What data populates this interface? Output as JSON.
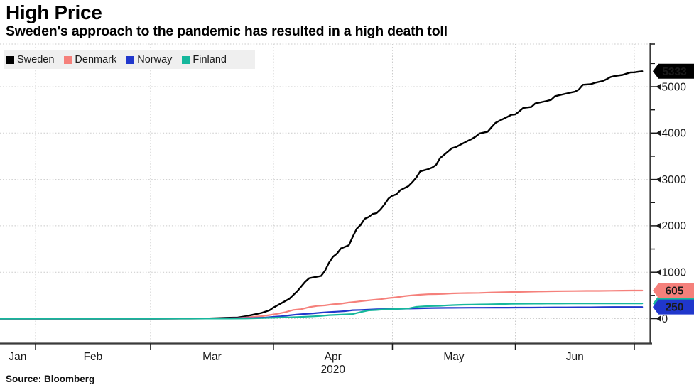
{
  "chart_data": {
    "type": "line",
    "title": "High Price",
    "subtitle": "Sweden's approach to the pandemic has resulted in a high death toll",
    "source": "Source: Bloomberg",
    "year_label": "2020",
    "x_axis": {
      "start_day": 22,
      "end_day": 184,
      "month_ticks": [
        31,
        60,
        91,
        121,
        152,
        182
      ],
      "month_labels": [
        {
          "label": "Jan",
          "day": 26.5
        },
        {
          "label": "Feb",
          "day": 45.5
        },
        {
          "label": "Mar",
          "day": 75.5
        },
        {
          "label": "Apr",
          "day": 106
        },
        {
          "label": "May",
          "day": 136.5
        },
        {
          "label": "Jun",
          "day": 167
        }
      ],
      "year_day": 106
    },
    "y_axis": {
      "major_ticks": [
        0,
        1000,
        2000,
        3000,
        4000,
        5000
      ],
      "minor_step": 500,
      "minor_max": 5500,
      "grid": true,
      "side": "right"
    },
    "legend_position": "top-left",
    "series": [
      {
        "id": "sweden",
        "name": "Sweden",
        "color": "#000000",
        "width": 2.4,
        "badge": {
          "label": "5333",
          "value": 5333,
          "text_color": "#ffffff",
          "z": 1
        },
        "points": [
          [
            22,
            0
          ],
          [
            50,
            0
          ],
          [
            60,
            0
          ],
          [
            70,
            1
          ],
          [
            74,
            3
          ],
          [
            77,
            10
          ],
          [
            80,
            20
          ],
          [
            82,
            25
          ],
          [
            84,
            50
          ],
          [
            86,
            87
          ],
          [
            88,
            122
          ],
          [
            90,
            180
          ],
          [
            91,
            239
          ],
          [
            93,
            333
          ],
          [
            95,
            428
          ],
          [
            97,
            591
          ],
          [
            99,
            793
          ],
          [
            100,
            870
          ],
          [
            101,
            887
          ],
          [
            103,
            919
          ],
          [
            104,
            1033
          ],
          [
            105,
            1203
          ],
          [
            106,
            1333
          ],
          [
            107,
            1400
          ],
          [
            108,
            1511
          ],
          [
            110,
            1580
          ],
          [
            111,
            1765
          ],
          [
            112,
            1937
          ],
          [
            113,
            2021
          ],
          [
            114,
            2152
          ],
          [
            115,
            2192
          ],
          [
            116,
            2255
          ],
          [
            117,
            2274
          ],
          [
            118,
            2355
          ],
          [
            119,
            2462
          ],
          [
            120,
            2586
          ],
          [
            121,
            2653
          ],
          [
            122,
            2679
          ],
          [
            123,
            2769
          ],
          [
            125,
            2854
          ],
          [
            126,
            2941
          ],
          [
            127,
            3040
          ],
          [
            128,
            3175
          ],
          [
            130,
            3220
          ],
          [
            131,
            3256
          ],
          [
            132,
            3313
          ],
          [
            133,
            3460
          ],
          [
            134,
            3529
          ],
          [
            136,
            3674
          ],
          [
            137,
            3698
          ],
          [
            138,
            3743
          ],
          [
            140,
            3831
          ],
          [
            141,
            3871
          ],
          [
            142,
            3925
          ],
          [
            143,
            3992
          ],
          [
            145,
            4029
          ],
          [
            146,
            4125
          ],
          [
            147,
            4220
          ],
          [
            148,
            4266
          ],
          [
            150,
            4350
          ],
          [
            151,
            4395
          ],
          [
            152,
            4403
          ],
          [
            153,
            4468
          ],
          [
            154,
            4542
          ],
          [
            156,
            4562
          ],
          [
            157,
            4639
          ],
          [
            158,
            4656
          ],
          [
            160,
            4694
          ],
          [
            161,
            4717
          ],
          [
            162,
            4795
          ],
          [
            163,
            4814
          ],
          [
            165,
            4854
          ],
          [
            166,
            4874
          ],
          [
            167,
            4891
          ],
          [
            168,
            4939
          ],
          [
            169,
            5041
          ],
          [
            171,
            5053
          ],
          [
            172,
            5082
          ],
          [
            174,
            5122
          ],
          [
            175,
            5161
          ],
          [
            176,
            5209
          ],
          [
            177,
            5230
          ],
          [
            179,
            5253
          ],
          [
            180,
            5280
          ],
          [
            181,
            5307
          ],
          [
            182,
            5310
          ],
          [
            183,
            5321
          ],
          [
            184,
            5333
          ]
        ]
      },
      {
        "id": "denmark",
        "name": "Denmark",
        "color": "#f5807b",
        "width": 2.2,
        "badge": {
          "label": "605",
          "value": 605,
          "text_color": "#6b1d16",
          "z": 2
        },
        "points": [
          [
            22,
            0
          ],
          [
            60,
            0
          ],
          [
            73,
            1
          ],
          [
            76,
            4
          ],
          [
            79,
            6
          ],
          [
            82,
            13
          ],
          [
            84,
            24
          ],
          [
            86,
            41
          ],
          [
            88,
            52
          ],
          [
            90,
            77
          ],
          [
            92,
            104
          ],
          [
            94,
            139
          ],
          [
            96,
            187
          ],
          [
            98,
            203
          ],
          [
            100,
            247
          ],
          [
            102,
            273
          ],
          [
            104,
            285
          ],
          [
            106,
            309
          ],
          [
            108,
            321
          ],
          [
            110,
            346
          ],
          [
            112,
            364
          ],
          [
            114,
            384
          ],
          [
            116,
            403
          ],
          [
            118,
            418
          ],
          [
            120,
            443
          ],
          [
            122,
            460
          ],
          [
            124,
            484
          ],
          [
            126,
            503
          ],
          [
            128,
            514
          ],
          [
            130,
            526
          ],
          [
            132,
            529
          ],
          [
            134,
            533
          ],
          [
            136,
            543
          ],
          [
            138,
            548
          ],
          [
            140,
            551
          ],
          [
            143,
            554
          ],
          [
            146,
            563
          ],
          [
            149,
            568
          ],
          [
            152,
            574
          ],
          [
            155,
            580
          ],
          [
            158,
            585
          ],
          [
            161,
            589
          ],
          [
            164,
            592
          ],
          [
            167,
            594
          ],
          [
            170,
            597
          ],
          [
            173,
            598
          ],
          [
            176,
            600
          ],
          [
            179,
            603
          ],
          [
            182,
            605
          ],
          [
            184,
            605
          ]
        ]
      },
      {
        "id": "norway",
        "name": "Norway",
        "color": "#2037cc",
        "width": 2.2,
        "badge": {
          "label": "250",
          "value": 250,
          "text_color": "#ffffff",
          "z": 3
        },
        "points": [
          [
            22,
            0
          ],
          [
            60,
            0
          ],
          [
            73,
            3
          ],
          [
            77,
            6
          ],
          [
            80,
            7
          ],
          [
            83,
            10
          ],
          [
            86,
            14
          ],
          [
            89,
            23
          ],
          [
            91,
            39
          ],
          [
            93,
            50
          ],
          [
            95,
            71
          ],
          [
            97,
            89
          ],
          [
            99,
            101
          ],
          [
            101,
            113
          ],
          [
            103,
            128
          ],
          [
            105,
            139
          ],
          [
            107,
            150
          ],
          [
            109,
            161
          ],
          [
            111,
            182
          ],
          [
            113,
            187
          ],
          [
            115,
            193
          ],
          [
            117,
            201
          ],
          [
            119,
            205
          ],
          [
            121,
            207
          ],
          [
            123,
            211
          ],
          [
            125,
            216
          ],
          [
            127,
            219
          ],
          [
            129,
            224
          ],
          [
            131,
            228
          ],
          [
            133,
            229
          ],
          [
            135,
            232
          ],
          [
            138,
            233
          ],
          [
            141,
            234
          ],
          [
            144,
            235
          ],
          [
            147,
            236
          ],
          [
            150,
            236
          ],
          [
            153,
            237
          ],
          [
            156,
            238
          ],
          [
            159,
            239
          ],
          [
            162,
            242
          ],
          [
            165,
            242
          ],
          [
            168,
            244
          ],
          [
            171,
            244
          ],
          [
            174,
            248
          ],
          [
            177,
            249
          ],
          [
            180,
            249
          ],
          [
            184,
            250
          ]
        ]
      },
      {
        "id": "finland",
        "name": "Finland",
        "color": "#15b79c",
        "width": 2.2,
        "badge": {
          "label": "",
          "value": 328,
          "text_color": "#0e4a40",
          "z": 0
        },
        "points": [
          [
            22,
            0
          ],
          [
            60,
            0
          ],
          [
            80,
            1
          ],
          [
            84,
            3
          ],
          [
            87,
            9
          ],
          [
            90,
            17
          ],
          [
            93,
            25
          ],
          [
            95,
            28
          ],
          [
            97,
            34
          ],
          [
            99,
            42
          ],
          [
            101,
            49
          ],
          [
            103,
            59
          ],
          [
            105,
            75
          ],
          [
            107,
            82
          ],
          [
            109,
            90
          ],
          [
            111,
            98
          ],
          [
            113,
            141
          ],
          [
            115,
            177
          ],
          [
            117,
            186
          ],
          [
            119,
            199
          ],
          [
            121,
            203
          ],
          [
            123,
            211
          ],
          [
            125,
            218
          ],
          [
            127,
            252
          ],
          [
            129,
            265
          ],
          [
            131,
            271
          ],
          [
            133,
            275
          ],
          [
            135,
            287
          ],
          [
            137,
            293
          ],
          [
            139,
            298
          ],
          [
            141,
            300
          ],
          [
            143,
            304
          ],
          [
            145,
            307
          ],
          [
            148,
            313
          ],
          [
            151,
            320
          ],
          [
            154,
            322
          ],
          [
            157,
            323
          ],
          [
            160,
            324
          ],
          [
            163,
            325
          ],
          [
            166,
            326
          ],
          [
            169,
            327
          ],
          [
            172,
            327
          ],
          [
            175,
            328
          ],
          [
            178,
            328
          ],
          [
            182,
            328
          ],
          [
            184,
            328
          ]
        ]
      }
    ]
  }
}
